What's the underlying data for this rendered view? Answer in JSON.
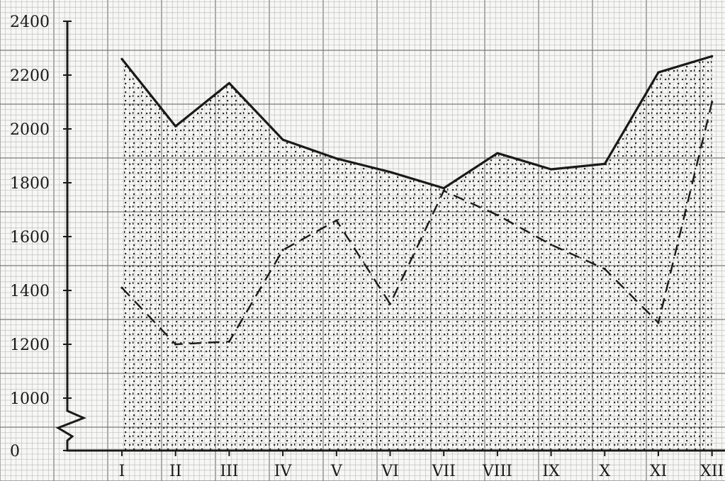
{
  "chart_data": {
    "type": "line",
    "categories": [
      "I",
      "II",
      "III",
      "IV",
      "V",
      "VI",
      "VII",
      "VIII",
      "IX",
      "X",
      "XI",
      "XII"
    ],
    "y_ticks": [
      "0",
      "1000",
      "1200",
      "1400",
      "1600",
      "1800",
      "2000",
      "2200",
      "2400"
    ],
    "y_tick_values": [
      0,
      1000,
      1200,
      1400,
      1600,
      1800,
      2000,
      2200,
      2400
    ],
    "ylim": [
      0,
      2400
    ],
    "axis_break": "between 0 and 1000",
    "grid": true,
    "series": [
      {
        "style": "solid",
        "values": [
          2260,
          2010,
          2170,
          1960,
          1890,
          1840,
          1780,
          1910,
          1850,
          1870,
          2210,
          2270
        ]
      },
      {
        "style": "dashed",
        "values": [
          1410,
          1200,
          1210,
          1550,
          1660,
          1350,
          1770,
          1680,
          1570,
          1480,
          1280,
          2100
        ]
      }
    ],
    "fill_between": "stippled area under the solid line",
    "colors": {
      "grid_minor": "#b5b5b5",
      "grid_major": "#7a7a7a",
      "ink": "#1a1a1a",
      "stipple": "#2a2a2a"
    }
  }
}
